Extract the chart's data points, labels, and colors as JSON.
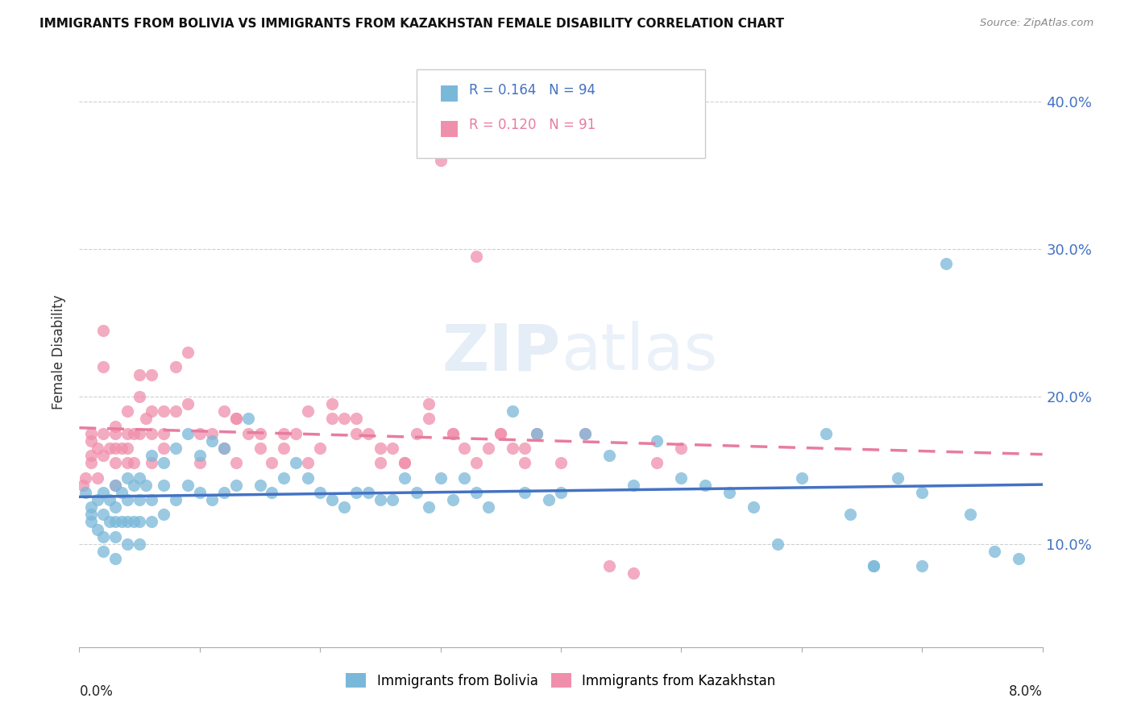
{
  "title": "IMMIGRANTS FROM BOLIVIA VS IMMIGRANTS FROM KAZAKHSTAN FEMALE DISABILITY CORRELATION CHART",
  "source": "Source: ZipAtlas.com",
  "ylabel": "Female Disability",
  "right_yticks": [
    0.1,
    0.2,
    0.3,
    0.4
  ],
  "right_yticklabels": [
    "10.0%",
    "20.0%",
    "30.0%",
    "40.0%"
  ],
  "xmin": 0.0,
  "xmax": 0.08,
  "ymin": 0.03,
  "ymax": 0.43,
  "bolivia_color": "#7ab8d9",
  "kazakhstan_color": "#f08fac",
  "bolivia_R": 0.164,
  "bolivia_N": 94,
  "kazakhstan_R": 0.12,
  "kazakhstan_N": 91,
  "legend_label_bolivia": "Immigrants from Bolivia",
  "legend_label_kazakhstan": "Immigrants from Kazakhstan",
  "watermark": "ZIPatlas",
  "bolivia_line_color": "#4472c4",
  "kazakhstan_line_color": "#e87c9e",
  "bolivia_scatter_x": [
    0.0005,
    0.001,
    0.001,
    0.001,
    0.0015,
    0.0015,
    0.002,
    0.002,
    0.002,
    0.002,
    0.0025,
    0.0025,
    0.003,
    0.003,
    0.003,
    0.003,
    0.003,
    0.0035,
    0.0035,
    0.004,
    0.004,
    0.004,
    0.004,
    0.0045,
    0.0045,
    0.005,
    0.005,
    0.005,
    0.005,
    0.0055,
    0.006,
    0.006,
    0.006,
    0.007,
    0.007,
    0.007,
    0.008,
    0.008,
    0.009,
    0.009,
    0.01,
    0.01,
    0.011,
    0.011,
    0.012,
    0.012,
    0.013,
    0.014,
    0.015,
    0.016,
    0.017,
    0.018,
    0.019,
    0.02,
    0.021,
    0.022,
    0.023,
    0.024,
    0.025,
    0.026,
    0.027,
    0.028,
    0.029,
    0.03,
    0.031,
    0.032,
    0.033,
    0.034,
    0.036,
    0.037,
    0.038,
    0.039,
    0.04,
    0.042,
    0.044,
    0.046,
    0.048,
    0.05,
    0.052,
    0.054,
    0.056,
    0.058,
    0.06,
    0.062,
    0.064,
    0.066,
    0.068,
    0.07,
    0.072,
    0.074,
    0.076,
    0.078,
    0.066,
    0.07
  ],
  "bolivia_scatter_y": [
    0.135,
    0.125,
    0.12,
    0.115,
    0.13,
    0.11,
    0.135,
    0.12,
    0.105,
    0.095,
    0.13,
    0.115,
    0.14,
    0.125,
    0.115,
    0.105,
    0.09,
    0.135,
    0.115,
    0.145,
    0.13,
    0.115,
    0.1,
    0.14,
    0.115,
    0.145,
    0.13,
    0.115,
    0.1,
    0.14,
    0.16,
    0.13,
    0.115,
    0.155,
    0.14,
    0.12,
    0.165,
    0.13,
    0.175,
    0.14,
    0.16,
    0.135,
    0.17,
    0.13,
    0.165,
    0.135,
    0.14,
    0.185,
    0.14,
    0.135,
    0.145,
    0.155,
    0.145,
    0.135,
    0.13,
    0.125,
    0.135,
    0.135,
    0.13,
    0.13,
    0.145,
    0.135,
    0.125,
    0.145,
    0.13,
    0.145,
    0.135,
    0.125,
    0.19,
    0.135,
    0.175,
    0.13,
    0.135,
    0.175,
    0.16,
    0.14,
    0.17,
    0.145,
    0.14,
    0.135,
    0.125,
    0.1,
    0.145,
    0.175,
    0.12,
    0.085,
    0.145,
    0.135,
    0.29,
    0.12,
    0.095,
    0.09,
    0.085,
    0.085
  ],
  "kazakhstan_scatter_x": [
    0.0003,
    0.0005,
    0.001,
    0.001,
    0.001,
    0.001,
    0.0015,
    0.0015,
    0.002,
    0.002,
    0.002,
    0.002,
    0.0025,
    0.003,
    0.003,
    0.003,
    0.003,
    0.003,
    0.0035,
    0.004,
    0.004,
    0.004,
    0.004,
    0.0045,
    0.0045,
    0.005,
    0.005,
    0.005,
    0.0055,
    0.006,
    0.006,
    0.006,
    0.006,
    0.007,
    0.007,
    0.007,
    0.008,
    0.008,
    0.009,
    0.009,
    0.01,
    0.01,
    0.011,
    0.012,
    0.012,
    0.013,
    0.013,
    0.014,
    0.015,
    0.016,
    0.017,
    0.018,
    0.019,
    0.02,
    0.021,
    0.022,
    0.023,
    0.024,
    0.025,
    0.026,
    0.027,
    0.028,
    0.029,
    0.03,
    0.031,
    0.032,
    0.033,
    0.034,
    0.035,
    0.036,
    0.037,
    0.038,
    0.04,
    0.042,
    0.044,
    0.046,
    0.048,
    0.05,
    0.013,
    0.015,
    0.017,
    0.019,
    0.021,
    0.023,
    0.025,
    0.027,
    0.029,
    0.031,
    0.033,
    0.035,
    0.037
  ],
  "kazakhstan_scatter_y": [
    0.14,
    0.145,
    0.16,
    0.175,
    0.17,
    0.155,
    0.165,
    0.145,
    0.16,
    0.175,
    0.22,
    0.245,
    0.165,
    0.175,
    0.165,
    0.155,
    0.14,
    0.18,
    0.165,
    0.175,
    0.19,
    0.155,
    0.165,
    0.175,
    0.155,
    0.215,
    0.2,
    0.175,
    0.185,
    0.215,
    0.19,
    0.175,
    0.155,
    0.19,
    0.175,
    0.165,
    0.22,
    0.19,
    0.23,
    0.195,
    0.175,
    0.155,
    0.175,
    0.19,
    0.165,
    0.185,
    0.155,
    0.175,
    0.175,
    0.155,
    0.165,
    0.175,
    0.19,
    0.165,
    0.185,
    0.185,
    0.175,
    0.175,
    0.155,
    0.165,
    0.155,
    0.175,
    0.195,
    0.36,
    0.175,
    0.165,
    0.295,
    0.165,
    0.175,
    0.165,
    0.155,
    0.175,
    0.155,
    0.175,
    0.085,
    0.08,
    0.155,
    0.165,
    0.185,
    0.165,
    0.175,
    0.155,
    0.195,
    0.185,
    0.165,
    0.155,
    0.185,
    0.175,
    0.155,
    0.175,
    0.165
  ]
}
